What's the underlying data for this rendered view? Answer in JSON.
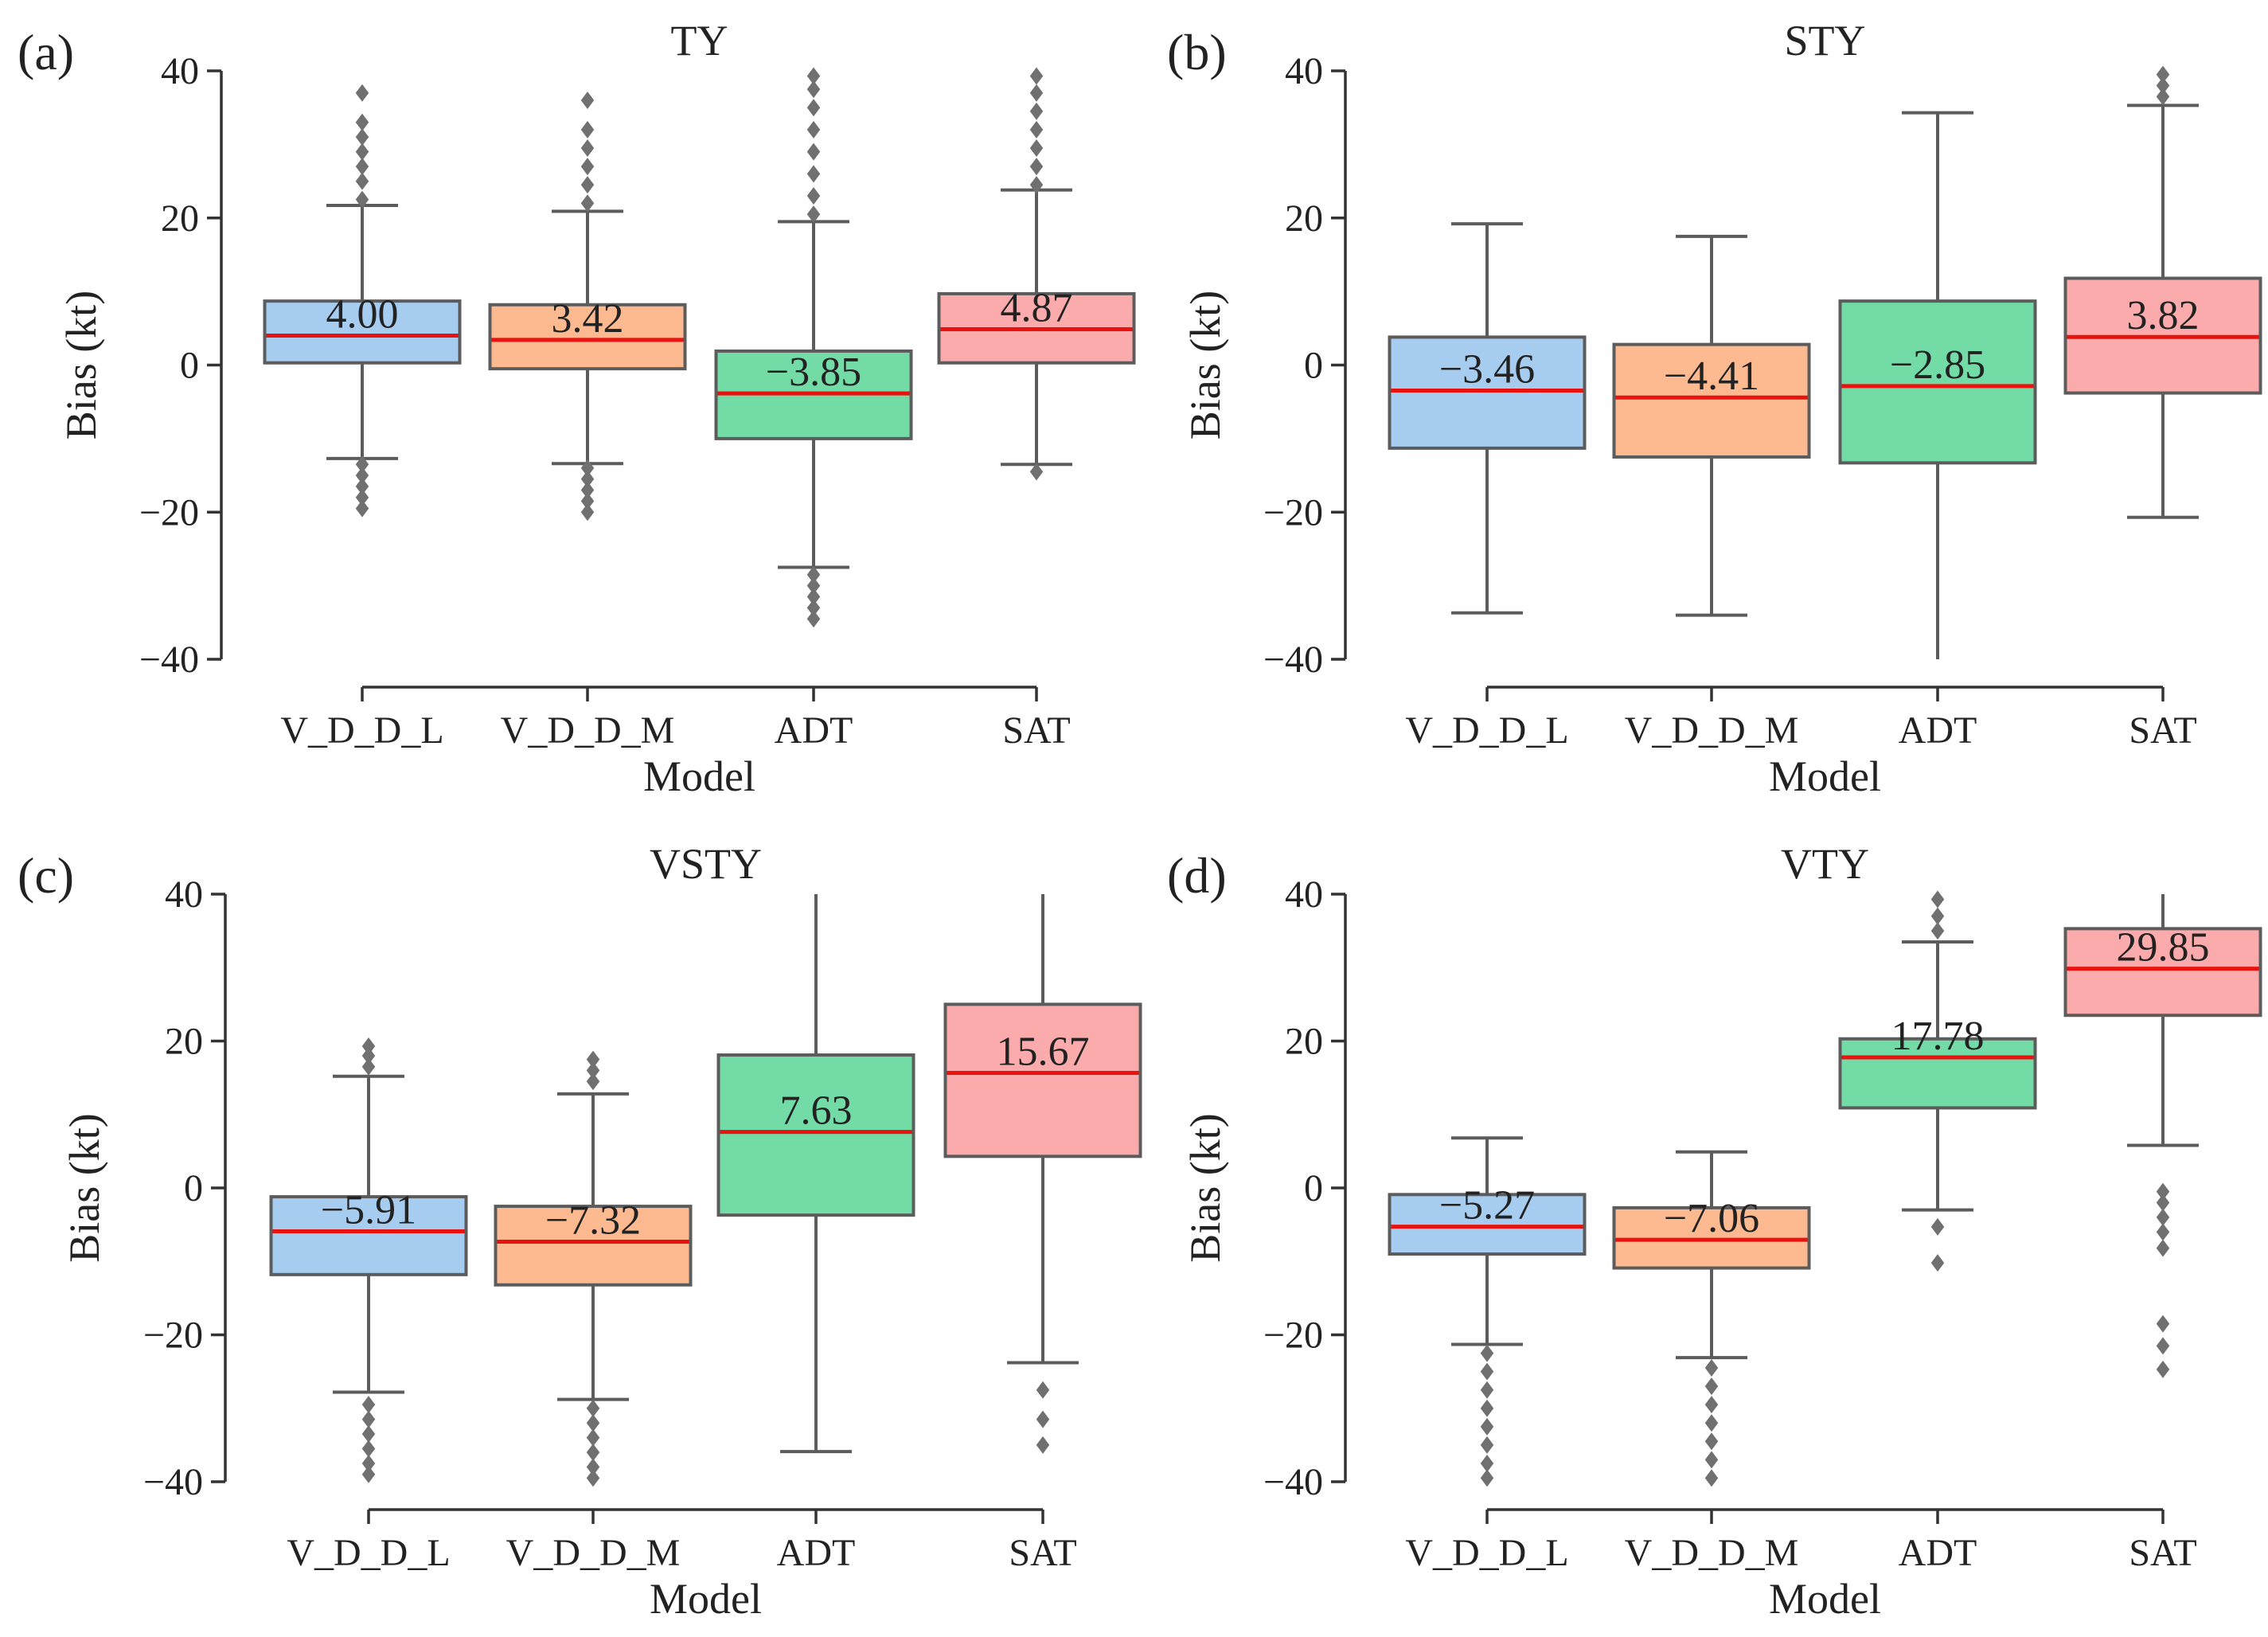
{
  "chart_data": [
    {
      "type": "box",
      "panel_label": "(a)",
      "title": "TY",
      "xlabel": "Model",
      "ylabel": "Bias (kt)",
      "ylim": [
        -40,
        40
      ],
      "yticks": [
        40,
        20,
        0,
        -20,
        -40
      ],
      "ytick_labels": [
        "40",
        "20",
        "0",
        "−20",
        "−40"
      ],
      "categories": [
        "V_D_D_L",
        "V_D_D_M",
        "ADT",
        "SAT"
      ],
      "median_labels": [
        "4.00",
        "3.42",
        "−3.85",
        "4.87"
      ],
      "boxes": [
        {
          "q1": 0.3,
          "median": 4.0,
          "q3": 8.7,
          "whisker_low": -12.7,
          "whisker_high": 21.7,
          "outliers_low": [
            -13.5,
            -15,
            -16.5,
            -18,
            -19.5
          ],
          "outliers_high": [
            22.5,
            25,
            27,
            29,
            31,
            33,
            37
          ]
        },
        {
          "q1": -0.5,
          "median": 3.42,
          "q3": 8.2,
          "whisker_low": -13.4,
          "whisker_high": 20.9,
          "outliers_low": [
            -14,
            -15.5,
            -17,
            -18.5,
            -20
          ],
          "outliers_high": [
            22,
            24.5,
            27,
            29.5,
            32,
            36
          ]
        },
        {
          "q1": -10.0,
          "median": -3.85,
          "q3": 1.9,
          "whisker_low": -27.5,
          "whisker_high": 19.5,
          "outliers_low": [
            -28.5,
            -30,
            -31.5,
            -33,
            -34.5
          ],
          "outliers_high": [
            20.5,
            23,
            26,
            29,
            32,
            35,
            37.5,
            39.3
          ]
        },
        {
          "q1": 0.3,
          "median": 4.87,
          "q3": 9.7,
          "whisker_low": -13.5,
          "whisker_high": 23.8,
          "outliers_low": [
            -14.5
          ],
          "outliers_high": [
            24.5,
            27,
            29.5,
            32,
            34.5,
            37,
            39.3
          ]
        }
      ]
    },
    {
      "type": "box",
      "panel_label": "(b)",
      "title": "STY",
      "xlabel": "Model",
      "ylabel": "Bias (kt)",
      "ylim": [
        -40,
        40
      ],
      "yticks": [
        40,
        20,
        0,
        -20,
        -40
      ],
      "ytick_labels": [
        "40",
        "20",
        "0",
        "−20",
        "−40"
      ],
      "categories": [
        "V_D_D_L",
        "V_D_D_M",
        "ADT",
        "SAT"
      ],
      "median_labels": [
        "−3.46",
        "−4.41",
        "−2.85",
        "3.82"
      ],
      "boxes": [
        {
          "q1": -11.3,
          "median": -3.46,
          "q3": 3.8,
          "whisker_low": -33.7,
          "whisker_high": 19.2,
          "outliers_low": [],
          "outliers_high": []
        },
        {
          "q1": -12.5,
          "median": -4.41,
          "q3": 2.8,
          "whisker_low": -34.0,
          "whisker_high": 17.5,
          "outliers_low": [],
          "outliers_high": []
        },
        {
          "q1": -13.3,
          "median": -2.85,
          "q3": 8.7,
          "whisker_low": -40.0,
          "whisker_high": 34.3,
          "outliers_low": [],
          "outliers_high": []
        },
        {
          "q1": -3.8,
          "median": 3.82,
          "q3": 11.8,
          "whisker_low": -20.7,
          "whisker_high": 35.3,
          "outliers_low": [],
          "outliers_high": [
            36.5,
            38,
            39.5
          ]
        }
      ]
    },
    {
      "type": "box",
      "panel_label": "(c)",
      "title": "VSTY",
      "xlabel": "Model",
      "ylabel": "Bias (kt)",
      "ylim": [
        -40,
        40
      ],
      "yticks": [
        40,
        20,
        0,
        -20,
        -40
      ],
      "ytick_labels": [
        "40",
        "20",
        "0",
        "−20",
        "−40"
      ],
      "categories": [
        "V_D_D_L",
        "V_D_D_M",
        "ADT",
        "SAT"
      ],
      "median_labels": [
        "−5.91",
        "−7.32",
        "7.63",
        "15.67"
      ],
      "boxes": [
        {
          "q1": -11.8,
          "median": -5.91,
          "q3": -1.2,
          "whisker_low": -27.8,
          "whisker_high": 15.2,
          "outliers_low": [
            -29.5,
            -31.5,
            -33.5,
            -35.5,
            -37.5,
            -39
          ],
          "outliers_high": [
            16.5,
            18,
            19.3
          ]
        },
        {
          "q1": -13.2,
          "median": -7.32,
          "q3": -2.5,
          "whisker_low": -28.8,
          "whisker_high": 12.8,
          "outliers_low": [
            -30,
            -32,
            -34,
            -36,
            -38,
            -39.5
          ],
          "outliers_high": [
            14.5,
            16,
            17.5
          ]
        },
        {
          "q1": -3.7,
          "median": 7.63,
          "q3": 18.1,
          "whisker_low": -35.9,
          "whisker_high": 40.0,
          "outliers_low": [],
          "outliers_high": []
        },
        {
          "q1": 4.3,
          "median": 15.67,
          "q3": 25.0,
          "whisker_low": -23.8,
          "whisker_high": 40.0,
          "outliers_low": [
            -27.5,
            -31.5,
            -35
          ],
          "outliers_high": []
        }
      ]
    },
    {
      "type": "box",
      "panel_label": "(d)",
      "title": "VTY",
      "xlabel": "Model",
      "ylabel": "Bias (kt)",
      "ylim": [
        -40,
        40
      ],
      "yticks": [
        40,
        20,
        0,
        -20,
        -40
      ],
      "ytick_labels": [
        "40",
        "20",
        "0",
        "−20",
        "−40"
      ],
      "categories": [
        "V_D_D_L",
        "V_D_D_M",
        "ADT",
        "SAT"
      ],
      "median_labels": [
        "−5.27",
        "−7.06",
        "17.78",
        "29.85"
      ],
      "boxes": [
        {
          "q1": -9.0,
          "median": -5.27,
          "q3": -0.9,
          "whisker_low": -21.3,
          "whisker_high": 6.8,
          "outliers_low": [
            -22.5,
            -25,
            -27.5,
            -30,
            -32.5,
            -35,
            -37.5,
            -39.5
          ],
          "outliers_high": []
        },
        {
          "q1": -10.9,
          "median": -7.06,
          "q3": -2.7,
          "whisker_low": -23.1,
          "whisker_high": 4.9,
          "outliers_low": [
            -24.5,
            -27,
            -29.5,
            -32,
            -34.5,
            -37,
            -39.5
          ],
          "outliers_high": []
        },
        {
          "q1": 10.9,
          "median": 17.78,
          "q3": 20.3,
          "whisker_low": -3.0,
          "whisker_high": 33.5,
          "outliers_low": [
            -5.3,
            -10.2
          ],
          "outliers_high": [
            35,
            37,
            39.3
          ]
        },
        {
          "q1": 23.5,
          "median": 29.85,
          "q3": 35.3,
          "whisker_low": 5.8,
          "whisker_high": 40.0,
          "outliers_low": [
            -0.5,
            -2,
            -4,
            -6,
            -8.2,
            -18.5,
            -21.5,
            -24.7
          ],
          "outliers_high": []
        }
      ]
    }
  ],
  "box_colors": [
    "#a6cdf0",
    "#fdb990",
    "#72dba6",
    "#fbabab"
  ],
  "median_color": "#e8120e",
  "edge_color": "#5c5c5c",
  "flier_color": "#707070"
}
